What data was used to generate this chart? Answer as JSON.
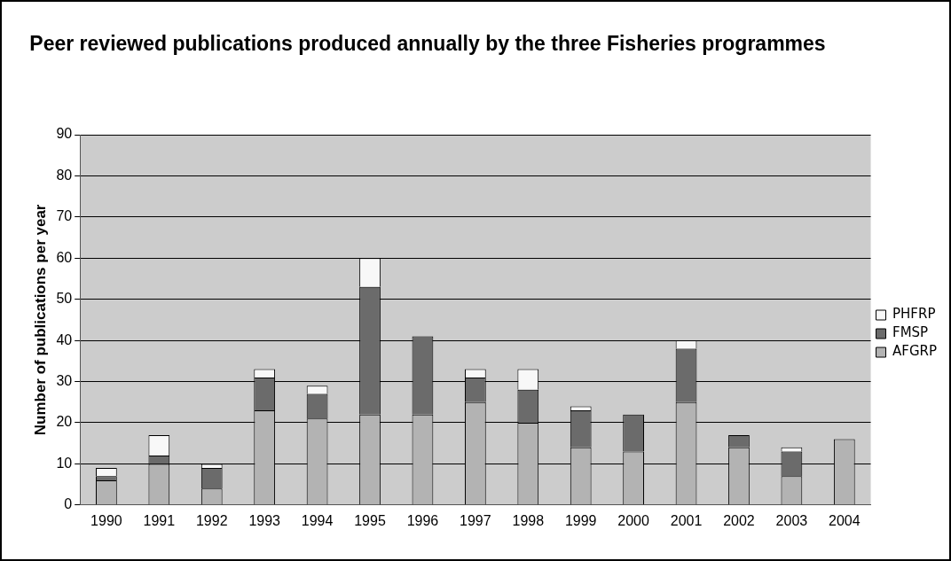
{
  "chart_data": {
    "type": "bar",
    "title": "Peer reviewed publications produced annually by the three Fisheries programmes",
    "ylabel": "Number of publications per year",
    "categories": [
      "1990",
      "1991",
      "1992",
      "1993",
      "1994",
      "1995",
      "1996",
      "1997",
      "1998",
      "1999",
      "2000",
      "2001",
      "2002",
      "2003",
      "2004"
    ],
    "stacked": true,
    "series": [
      {
        "name": "AFGRP",
        "color": "#b3b3b3",
        "values": [
          6,
          10,
          4,
          23,
          21,
          22,
          22,
          25,
          20,
          14,
          13,
          25,
          14,
          7,
          16
        ]
      },
      {
        "name": "FMSP",
        "color": "#6b6b6b",
        "values": [
          1,
          2,
          5,
          8,
          6,
          31,
          19,
          6,
          8,
          9,
          9,
          13,
          3,
          6,
          0
        ]
      },
      {
        "name": "PHFRP",
        "color": "#f8f8f8",
        "values": [
          2,
          5,
          1,
          2,
          2,
          7,
          0,
          2,
          5,
          1,
          0,
          2,
          0,
          1,
          0
        ]
      }
    ],
    "ylim": [
      0,
      90
    ],
    "yticks": [
      0,
      10,
      20,
      30,
      40,
      50,
      60,
      70,
      80,
      90
    ],
    "grid": "y",
    "legend": "right"
  }
}
